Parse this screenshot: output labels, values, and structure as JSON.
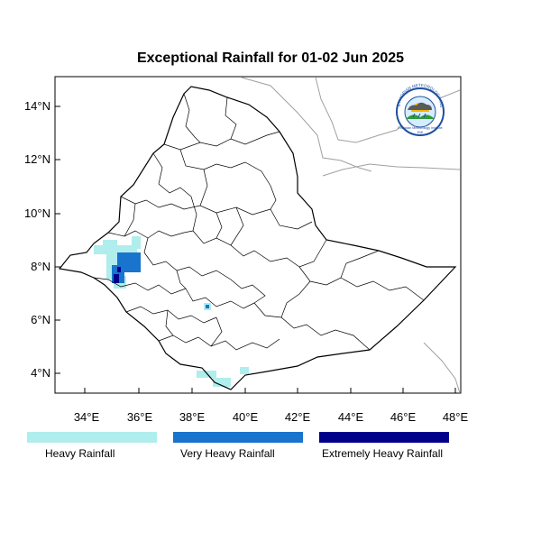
{
  "title": "Exceptional Rainfall for 01-02 Jun 2025",
  "axes": {
    "y_ticks": [
      "14°N",
      "12°N",
      "10°N",
      "8°N",
      "6°N",
      "4°N"
    ],
    "x_ticks": [
      "34°E",
      "36°E",
      "38°E",
      "40°E",
      "42°E",
      "44°E",
      "46°E",
      "48°E"
    ]
  },
  "logo": {
    "text": "Ethiopian Meteorology Institute",
    "arc_text": "ETHIOPIAN METEOROLOGY INSTITUTE",
    "short": "EMI"
  },
  "legend": [
    {
      "label": "Heavy Rainfall",
      "color": "#b0eded"
    },
    {
      "label": "Very Heavy Rainfall",
      "color": "#1874cd"
    },
    {
      "label": "Extremely Heavy Rainfall",
      "color": "#00008b"
    }
  ],
  "colors": {
    "border": "#000000",
    "neighbor_border": "#a0a0a0",
    "heavy": "#b0eded",
    "very_heavy": "#1874cd",
    "extreme": "#00008b"
  }
}
